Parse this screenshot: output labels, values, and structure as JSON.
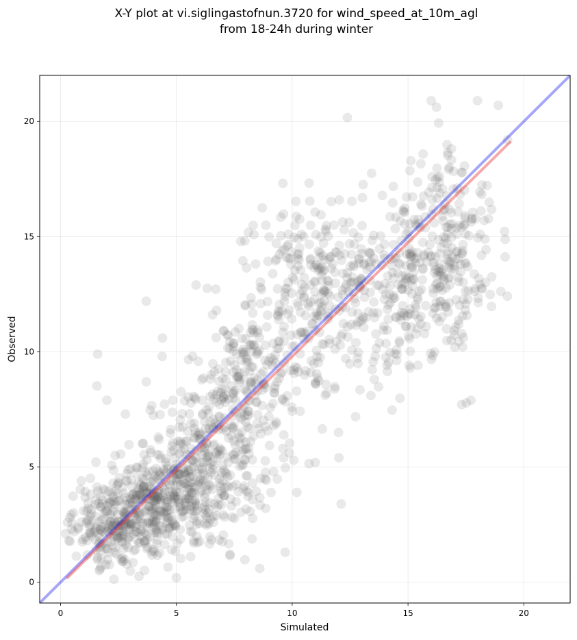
{
  "chart_data": {
    "type": "scatter",
    "title": "X-Y plot at vi.siglingastofnun.3720 for wind_speed_at_10m_agl",
    "subtitle": "from 18-24h during winter",
    "xlabel": "Simulated",
    "ylabel": "Observed",
    "xlim": [
      -0.9,
      22
    ],
    "ylim": [
      -0.9,
      22
    ],
    "x_ticks": [
      0,
      5,
      10,
      15,
      20
    ],
    "y_ticks": [
      0,
      5,
      10,
      15,
      20
    ],
    "grid": true,
    "legend": "none",
    "point_color": "#555555",
    "identity_line": {
      "from": [
        -0.9,
        -0.9
      ],
      "to": [
        22,
        22
      ],
      "color": "#0000ee"
    },
    "fit_line": {
      "from": [
        0.3,
        0.2
      ],
      "to": [
        19.4,
        19.1
      ],
      "color": "#ee2222"
    },
    "series": [
      {
        "clusters": [
          {
            "cx": 2.4,
            "cy": 2.6,
            "sx": 1.0,
            "sy": 1.0,
            "n": 240
          },
          {
            "cx": 4.4,
            "cy": 3.6,
            "sx": 1.0,
            "sy": 1.1,
            "n": 280
          },
          {
            "cx": 6.2,
            "cy": 5.0,
            "sx": 1.2,
            "sy": 1.6,
            "n": 260
          },
          {
            "cx": 8.0,
            "cy": 8.3,
            "sx": 1.2,
            "sy": 2.0,
            "n": 240
          },
          {
            "cx": 11.2,
            "cy": 12.8,
            "sx": 1.4,
            "sy": 2.3,
            "n": 300
          },
          {
            "cx": 14.7,
            "cy": 12.8,
            "sx": 1.2,
            "sy": 2.2,
            "n": 180
          },
          {
            "cx": 16.8,
            "cy": 14.3,
            "sx": 1.0,
            "sy": 2.2,
            "n": 220
          }
        ],
        "outliers": [
          [
            1.6,
            9.9
          ],
          [
            3.7,
            12.2
          ],
          [
            2.0,
            7.9
          ],
          [
            9.7,
            1.3
          ],
          [
            10.2,
            3.9
          ],
          [
            8.6,
            0.6
          ],
          [
            5.0,
            0.2
          ],
          [
            16.0,
            20.9
          ],
          [
            18.0,
            20.9
          ],
          [
            18.9,
            20.7
          ],
          [
            11.0,
            5.2
          ],
          [
            2.8,
            7.3
          ],
          [
            4.4,
            10.6
          ],
          [
            19.3,
            19.2
          ],
          [
            0.4,
            2.8
          ],
          [
            0.3,
            2.6
          ],
          [
            0.9,
            4.4
          ],
          [
            3.7,
            8.7
          ],
          [
            12.0,
            6.5
          ],
          [
            15.1,
            9.3
          ]
        ]
      }
    ]
  }
}
